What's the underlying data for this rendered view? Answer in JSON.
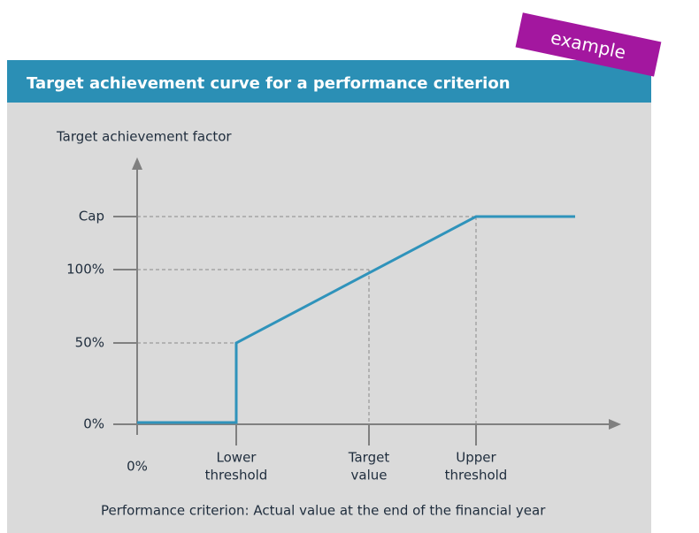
{
  "header": {
    "title": "Target achievement curve for a performance criterion",
    "badge": "example"
  },
  "y_axis": {
    "title": "Target achievement factor",
    "ticks": [
      "Cap",
      "100%",
      "50%",
      "0%"
    ]
  },
  "x_axis": {
    "title": "Performance criterion: Actual value at the end of the financial year",
    "ticks": [
      [
        "0%"
      ],
      [
        "Lower",
        "threshold"
      ],
      [
        "Target",
        "value"
      ],
      [
        "Upper",
        "threshold"
      ]
    ]
  }
}
